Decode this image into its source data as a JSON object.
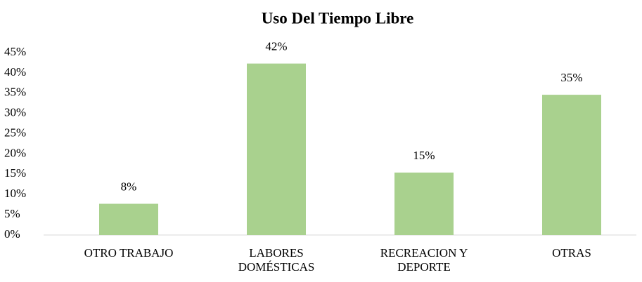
{
  "chart_data": {
    "type": "bar",
    "title": "Uso Del Tiempo Libre",
    "categories": [
      "OTRO TRABAJO",
      "LABORES DOMÉSTICAS",
      "RECREACION Y DEPORTE",
      "OTRAS"
    ],
    "values": [
      7.7,
      42.3,
      15.4,
      34.6
    ],
    "value_labels": [
      "8%",
      "42%",
      "15%",
      "35%"
    ],
    "color": "#a9d18e",
    "ylim": [
      0,
      45
    ],
    "yticks": [
      {
        "value": 0,
        "label": "0%"
      },
      {
        "value": 5,
        "label": "5%"
      },
      {
        "value": 10,
        "label": "10%"
      },
      {
        "value": 15,
        "label": "15%"
      },
      {
        "value": 20,
        "label": "20%"
      },
      {
        "value": 25,
        "label": "25%"
      },
      {
        "value": 30,
        "label": "30%"
      },
      {
        "value": 35,
        "label": "35%"
      },
      {
        "value": 40,
        "label": "40%"
      },
      {
        "value": 45,
        "label": "45%"
      }
    ],
    "grid": false
  }
}
